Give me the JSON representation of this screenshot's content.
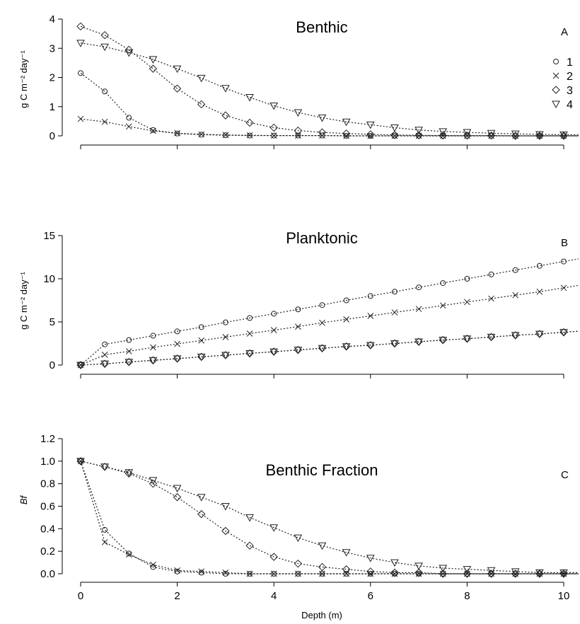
{
  "chart_data": [
    {
      "type": "line",
      "id": "A",
      "title": "Benthic",
      "panel_label": "A",
      "ylabel": "g C m⁻² day⁻¹",
      "xlabel": "",
      "xlim": [
        -0.35,
        10.4
      ],
      "ylim": [
        -0.12,
        4.2
      ],
      "x_ticks": [
        0,
        2,
        4,
        6,
        8,
        10
      ],
      "x_tick_labels": [
        "",
        "",
        "",
        "",
        "",
        ""
      ],
      "y_ticks": [
        0,
        1,
        2,
        3,
        4
      ],
      "y_tick_labels": [
        "0",
        "1",
        "2",
        "3",
        "4"
      ],
      "legend_position": "top-right",
      "x": [
        0,
        0.5,
        1,
        1.5,
        2,
        2.5,
        3,
        3.5,
        4,
        4.5,
        5,
        5.5,
        6,
        6.5,
        7,
        7.5,
        8,
        8.5,
        9,
        9.5,
        10
      ],
      "series": [
        {
          "name": "1",
          "marker": "circle",
          "values": [
            2.15,
            1.52,
            0.62,
            0.2,
            0.08,
            0.04,
            0.02,
            0.01,
            0.01,
            0.01,
            0.01,
            0,
            0,
            0,
            0,
            0,
            0,
            0,
            0,
            0,
            0
          ]
        },
        {
          "name": "2",
          "marker": "x",
          "values": [
            0.58,
            0.48,
            0.32,
            0.17,
            0.09,
            0.05,
            0.03,
            0.02,
            0.01,
            0.01,
            0.01,
            0,
            0,
            0,
            0,
            0,
            0,
            0,
            0,
            0,
            0
          ]
        },
        {
          "name": "3",
          "marker": "diamond",
          "values": [
            3.75,
            3.45,
            2.95,
            2.3,
            1.62,
            1.08,
            0.7,
            0.45,
            0.28,
            0.18,
            0.12,
            0.08,
            0.05,
            0.03,
            0.02,
            0.01,
            0.01,
            0.01,
            0,
            0,
            0
          ]
        },
        {
          "name": "4",
          "marker": "triangle-down",
          "values": [
            3.18,
            3.05,
            2.85,
            2.62,
            2.3,
            1.98,
            1.63,
            1.32,
            1.03,
            0.8,
            0.62,
            0.48,
            0.38,
            0.28,
            0.2,
            0.15,
            0.12,
            0.09,
            0.07,
            0.05,
            0.04
          ]
        }
      ]
    },
    {
      "type": "line",
      "id": "B",
      "title": "Planktonic",
      "panel_label": "B",
      "ylabel": "g C m⁻² day⁻¹",
      "xlabel": "",
      "xlim": [
        -0.35,
        10.4
      ],
      "ylim": [
        -0.6,
        16.5
      ],
      "x_ticks": [
        0,
        2,
        4,
        6,
        8,
        10
      ],
      "x_tick_labels": [
        "",
        "",
        "",
        "",
        "",
        ""
      ],
      "y_ticks": [
        0,
        5,
        10,
        15
      ],
      "y_tick_labels": [
        "0",
        "5",
        "10",
        "15"
      ],
      "x": [
        0,
        0.5,
        1,
        1.5,
        2,
        2.5,
        3,
        3.5,
        4,
        4.5,
        5,
        5.5,
        6,
        6.5,
        7,
        7.5,
        8,
        8.5,
        9,
        9.5,
        10
      ],
      "series": [
        {
          "name": "1",
          "marker": "circle",
          "values": [
            0,
            2.4,
            2.9,
            3.4,
            3.9,
            4.4,
            4.95,
            5.45,
            5.95,
            6.45,
            6.95,
            7.5,
            8.0,
            8.5,
            9.0,
            9.5,
            10.0,
            10.5,
            11.0,
            11.5,
            12.0
          ]
        },
        {
          "name": "2",
          "marker": "x",
          "values": [
            0,
            1.2,
            1.6,
            2.05,
            2.45,
            2.85,
            3.25,
            3.65,
            4.05,
            4.45,
            4.9,
            5.3,
            5.7,
            6.1,
            6.5,
            6.9,
            7.3,
            7.7,
            8.1,
            8.5,
            8.95
          ]
        },
        {
          "name": "3",
          "marker": "diamond",
          "values": [
            0,
            0.15,
            0.35,
            0.55,
            0.75,
            0.95,
            1.15,
            1.35,
            1.55,
            1.75,
            1.95,
            2.15,
            2.3,
            2.5,
            2.7,
            2.9,
            3.05,
            3.25,
            3.45,
            3.6,
            3.8
          ]
        },
        {
          "name": "4",
          "marker": "triangle-down",
          "values": [
            0,
            0.15,
            0.35,
            0.55,
            0.75,
            0.95,
            1.15,
            1.35,
            1.55,
            1.75,
            1.95,
            2.15,
            2.3,
            2.5,
            2.7,
            2.9,
            3.05,
            3.25,
            3.45,
            3.6,
            3.8
          ]
        }
      ]
    },
    {
      "type": "line",
      "id": "C",
      "title": "Benthic Fraction",
      "panel_label": "C",
      "ylabel": "Bf",
      "xlabel": "Depth (m)",
      "xlim": [
        -0.35,
        10.4
      ],
      "ylim": [
        -0.03,
        1.25
      ],
      "x_ticks": [
        0,
        2,
        4,
        6,
        8,
        10
      ],
      "x_tick_labels": [
        "0",
        "2",
        "4",
        "6",
        "8",
        "10"
      ],
      "y_ticks": [
        0,
        0.2,
        0.4,
        0.6,
        0.8,
        1.0,
        1.2
      ],
      "y_tick_labels": [
        "0.0",
        "0.2",
        "0.4",
        "0.6",
        "0.8",
        "1.0",
        "1.2"
      ],
      "x": [
        0,
        0.5,
        1,
        1.5,
        2,
        2.5,
        3,
        3.5,
        4,
        4.5,
        5,
        5.5,
        6,
        6.5,
        7,
        7.5,
        8,
        8.5,
        9,
        9.5,
        10
      ],
      "series": [
        {
          "name": "1",
          "marker": "circle",
          "values": [
            1.0,
            0.39,
            0.18,
            0.06,
            0.02,
            0.01,
            0,
            0,
            0,
            0,
            0,
            0,
            0,
            0,
            0,
            0,
            0,
            0,
            0,
            0,
            0
          ]
        },
        {
          "name": "2",
          "marker": "x",
          "values": [
            1.0,
            0.28,
            0.17,
            0.08,
            0.03,
            0.02,
            0.01,
            0,
            0,
            0,
            0,
            0,
            0,
            0,
            0,
            0,
            0,
            0,
            0,
            0,
            0
          ]
        },
        {
          "name": "3",
          "marker": "diamond",
          "values": [
            1.0,
            0.95,
            0.89,
            0.8,
            0.68,
            0.53,
            0.38,
            0.25,
            0.15,
            0.09,
            0.06,
            0.04,
            0.02,
            0.01,
            0.01,
            0,
            0,
            0,
            0,
            0,
            0
          ]
        },
        {
          "name": "4",
          "marker": "triangle-down",
          "values": [
            1.0,
            0.95,
            0.9,
            0.83,
            0.76,
            0.68,
            0.6,
            0.5,
            0.41,
            0.32,
            0.25,
            0.19,
            0.14,
            0.1,
            0.07,
            0.05,
            0.04,
            0.03,
            0.02,
            0.01,
            0.01
          ]
        }
      ]
    }
  ]
}
